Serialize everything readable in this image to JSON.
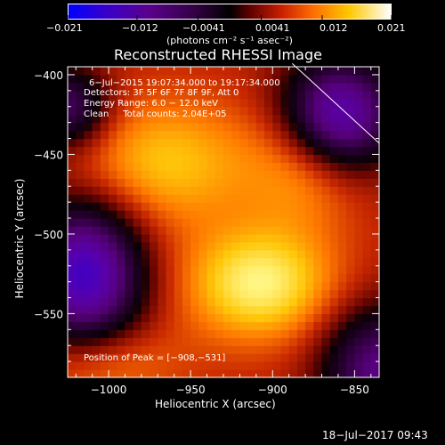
{
  "colorbar": {
    "ticks": [
      "−0.021",
      "−0.012",
      "−0.0041",
      "0.0041",
      "0.012",
      "0.021"
    ],
    "unit_label": "(photons cm⁻² s⁻¹ asec⁻²)"
  },
  "chart_data": {
    "type": "heatmap",
    "title": "Reconstructed RHESSI Image",
    "xlabel": "Heliocentric X (arcsec)",
    "ylabel": "Heliocentric Y (arcsec)",
    "xlim": [
      -1025,
      -835
    ],
    "ylim": [
      -590,
      -395
    ],
    "xticks": [
      -1000,
      -950,
      -900,
      -850
    ],
    "yticks": [
      -400,
      -450,
      -500,
      -550
    ],
    "xtick_labels": [
      "−1000",
      "−950",
      "−900",
      "−850"
    ],
    "ytick_labels": [
      "−400",
      "−450",
      "−500",
      "−550"
    ],
    "color_range": [
      -0.021,
      0.021
    ],
    "peak": [
      -908,
      -531
    ],
    "annotations": {
      "time": "6−Jul−2015 19:07:34.000 to 19:17:34.000",
      "detectors": "Detectors: 3F 5F 6F 7F 8F 9F, Att 0",
      "energy": "Energy Range: 6.0 − 12.0 keV",
      "clean": "Clean     Total counts: 2.04E+05",
      "peak_label": "Position of Peak = [−908,−531]"
    }
  },
  "footer": {
    "date": "18−Jul−2017 09:43"
  }
}
